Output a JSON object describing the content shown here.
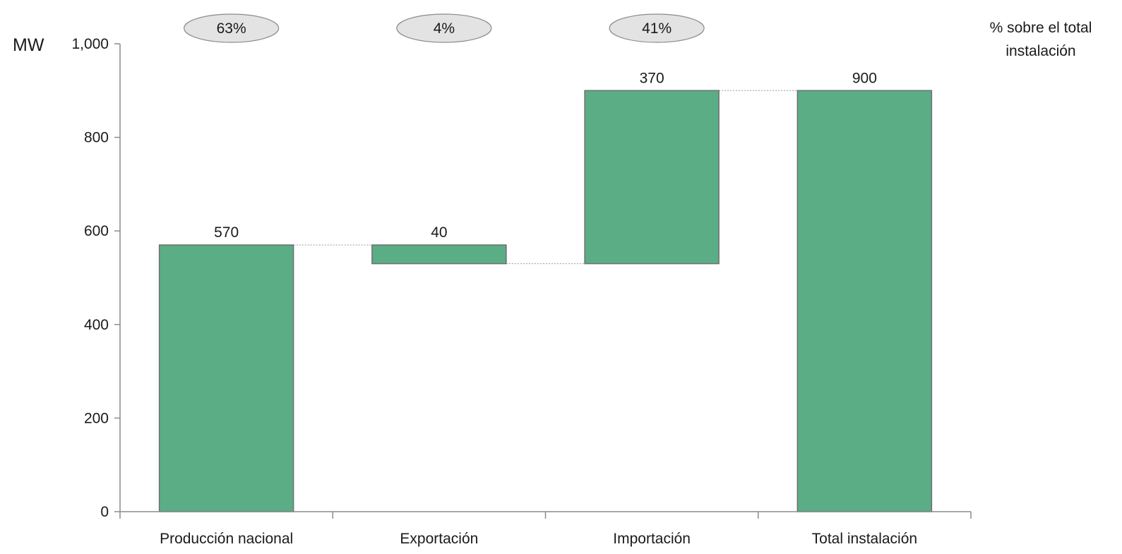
{
  "chart_data": {
    "type": "bar",
    "subtype": "waterfall",
    "unit_label": "MW",
    "categories": [
      "Producción nacional",
      "Exportación",
      "Importación",
      "Total instalación"
    ],
    "bars": [
      {
        "category": "Producción nacional",
        "start": 0,
        "end": 570,
        "label": "570",
        "pct": "63%"
      },
      {
        "category": "Exportación",
        "start": 530,
        "end": 570,
        "label": "40",
        "pct": "4%"
      },
      {
        "category": "Importación",
        "start": 530,
        "end": 900,
        "label": "370",
        "pct": "41%"
      },
      {
        "category": "Total instalación",
        "start": 0,
        "end": 900,
        "label": "900",
        "pct": null
      }
    ],
    "ylim": [
      0,
      1000
    ],
    "yticks": [
      0,
      200,
      400,
      600,
      800,
      1000
    ],
    "ytick_labels": [
      "0",
      "200",
      "400",
      "600",
      "800",
      "1,000"
    ],
    "pct_title_lines": [
      "% sobre el total",
      "instalación"
    ],
    "grid": false,
    "colors": {
      "bar_fill": "#5aad85",
      "bar_stroke": "#6f6f6f",
      "axis": "#8c8c8c",
      "connector": "#9a9a9a",
      "pct_fill": "#e3e3e3",
      "pct_stroke": "#8a8a8a"
    }
  }
}
